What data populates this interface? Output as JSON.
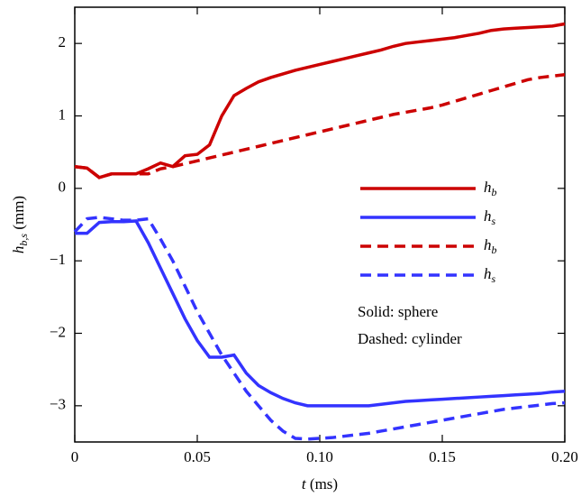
{
  "chart_data": {
    "type": "line",
    "x_label": "t (ms)",
    "y_label": "hb,s (mm)",
    "x": [
      0,
      0.005,
      0.01,
      0.015,
      0.02,
      0.025,
      0.03,
      0.035,
      0.04,
      0.045,
      0.05,
      0.055,
      0.06,
      0.065,
      0.07,
      0.075,
      0.08,
      0.085,
      0.09,
      0.095,
      0.1,
      0.105,
      0.11,
      0.115,
      0.12,
      0.125,
      0.13,
      0.135,
      0.14,
      0.145,
      0.15,
      0.155,
      0.16,
      0.165,
      0.17,
      0.175,
      0.18,
      0.185,
      0.19,
      0.195,
      0.2
    ],
    "series": [
      {
        "name": "hb",
        "color": "#cc0000",
        "dashed": false,
        "values": [
          0.3,
          0.28,
          0.15,
          0.2,
          0.2,
          0.2,
          0.27,
          0.35,
          0.3,
          0.45,
          0.47,
          0.6,
          1.0,
          1.28,
          1.38,
          1.47,
          1.53,
          1.58,
          1.63,
          1.67,
          1.71,
          1.75,
          1.79,
          1.83,
          1.87,
          1.91,
          1.96,
          2.0,
          2.02,
          2.04,
          2.06,
          2.08,
          2.11,
          2.14,
          2.18,
          2.2,
          2.21,
          2.22,
          2.23,
          2.24,
          2.27
        ]
      },
      {
        "name": "hs",
        "color": "#3333ff",
        "dashed": false,
        "values": [
          -0.62,
          -0.62,
          -0.47,
          -0.46,
          -0.46,
          -0.45,
          -0.75,
          -1.1,
          -1.45,
          -1.8,
          -2.1,
          -2.33,
          -2.33,
          -2.3,
          -2.55,
          -2.72,
          -2.82,
          -2.9,
          -2.96,
          -3.0,
          -3.0,
          -3.0,
          -3.0,
          -3.0,
          -3.0,
          -2.98,
          -2.96,
          -2.94,
          -2.93,
          -2.92,
          -2.91,
          -2.9,
          -2.89,
          -2.88,
          -2.87,
          -2.86,
          -2.85,
          -2.84,
          -2.83,
          -2.81,
          -2.8
        ]
      },
      {
        "name": "hb",
        "color": "#cc0000",
        "dashed": true,
        "values": [
          0.3,
          0.28,
          0.15,
          0.2,
          0.2,
          0.2,
          0.2,
          0.27,
          0.3,
          0.34,
          0.38,
          0.42,
          0.46,
          0.5,
          0.54,
          0.58,
          0.62,
          0.66,
          0.7,
          0.74,
          0.78,
          0.82,
          0.86,
          0.9,
          0.94,
          0.98,
          1.02,
          1.05,
          1.08,
          1.11,
          1.15,
          1.2,
          1.25,
          1.3,
          1.35,
          1.4,
          1.45,
          1.5,
          1.53,
          1.55,
          1.57
        ]
      },
      {
        "name": "hs",
        "color": "#3333ff",
        "dashed": true,
        "values": [
          -0.6,
          -0.42,
          -0.4,
          -0.42,
          -0.44,
          -0.44,
          -0.42,
          -0.7,
          -1.0,
          -1.35,
          -1.7,
          -2.0,
          -2.3,
          -2.55,
          -2.8,
          -3.0,
          -3.2,
          -3.35,
          -3.45,
          -3.46,
          -3.45,
          -3.44,
          -3.42,
          -3.4,
          -3.38,
          -3.35,
          -3.32,
          -3.29,
          -3.26,
          -3.23,
          -3.2,
          -3.17,
          -3.14,
          -3.11,
          -3.08,
          -3.05,
          -3.03,
          -3.01,
          -2.99,
          -2.97,
          -2.96
        ]
      }
    ],
    "annotations": [
      "Solid: sphere",
      "Dashed: cylinder"
    ],
    "legend": "center right",
    "xlim": [
      0,
      0.2
    ],
    "xticks": [
      0,
      0.05,
      {
        "value": 0.1,
        "label": "0.10"
      },
      0.15,
      {
        "value": 0.2,
        "label": "0.20"
      }
    ],
    "ylim": [
      -3.5,
      2.5
    ],
    "yticks": [
      {
        "value": -3,
        "label": "−3"
      },
      {
        "value": -2,
        "label": "−2"
      },
      {
        "value": -1,
        "label": "−1"
      },
      0,
      1,
      2
    ],
    "grid": false
  }
}
